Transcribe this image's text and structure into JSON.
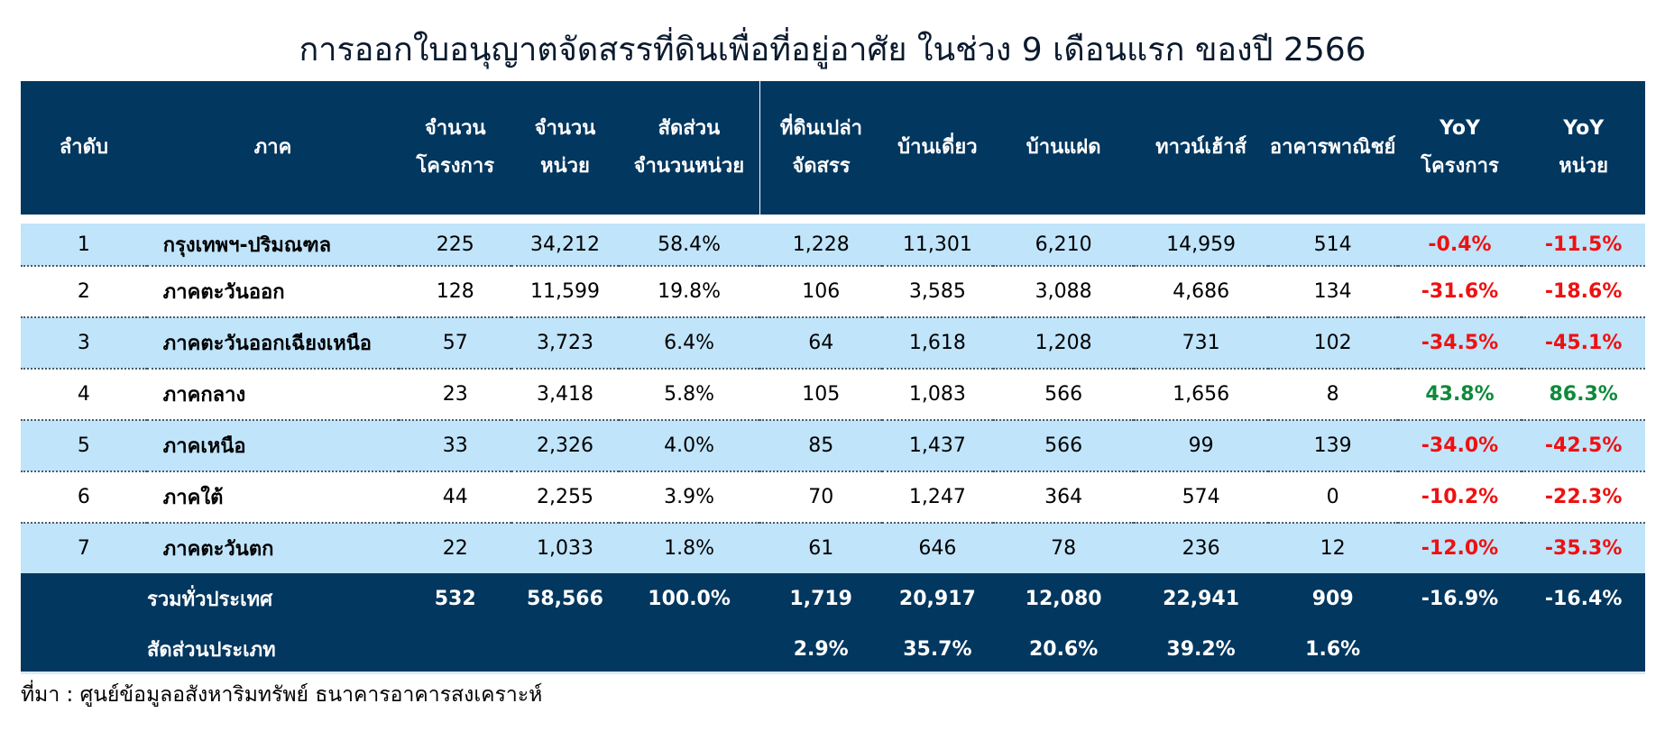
{
  "title": "การออกใบอนุญาตจัดสรรที่ดินเพื่อที่อยู่อาศัย ในช่วง 9 เดือนแรก ของปี 2566",
  "headers": {
    "col0": [
      "ลำดับ"
    ],
    "col1": [
      "ภาค"
    ],
    "col2": [
      "จำนวน",
      "โครงการ"
    ],
    "col3": [
      "จำนวน",
      "หน่วย"
    ],
    "col4": [
      "สัดส่วน",
      "จำนวนหน่วย"
    ],
    "col5": [
      "ที่ดินเปล่า",
      "จัดสรร"
    ],
    "col6": [
      "บ้านเดี่ยว"
    ],
    "col7": [
      "บ้านแฝด"
    ],
    "col8": [
      "ทาวน์เฮ้าส์"
    ],
    "col9": [
      "อาคารพาณิชย์"
    ],
    "col10": [
      "YoY",
      "โครงการ"
    ],
    "col11": [
      "YoY",
      "หน่วย"
    ]
  },
  "rows": [
    {
      "no": "1",
      "region": "กรุงเทพฯ-ปริมณฑล",
      "projects": "225",
      "units": "34,212",
      "share": "58.4%",
      "land": "1,228",
      "detached": "11,301",
      "twin": "6,210",
      "townhouse": "14,959",
      "commercial": "514",
      "yoy_projects": "-0.4%",
      "yoy_units": "-11.5%"
    },
    {
      "no": "2",
      "region": "ภาคตะวันออก",
      "projects": "128",
      "units": "11,599",
      "share": "19.8%",
      "land": "106",
      "detached": "3,585",
      "twin": "3,088",
      "townhouse": "4,686",
      "commercial": "134",
      "yoy_projects": "-31.6%",
      "yoy_units": "-18.6%"
    },
    {
      "no": "3",
      "region": "ภาคตะวันออกเฉียงเหนือ",
      "projects": "57",
      "units": "3,723",
      "share": "6.4%",
      "land": "64",
      "detached": "1,618",
      "twin": "1,208",
      "townhouse": "731",
      "commercial": "102",
      "yoy_projects": "-34.5%",
      "yoy_units": "-45.1%"
    },
    {
      "no": "4",
      "region": "ภาคกลาง",
      "projects": "23",
      "units": "3,418",
      "share": "5.8%",
      "land": "105",
      "detached": "1,083",
      "twin": "566",
      "townhouse": "1,656",
      "commercial": "8",
      "yoy_projects": "43.8%",
      "yoy_units": "86.3%"
    },
    {
      "no": "5",
      "region": "ภาคเหนือ",
      "projects": "33",
      "units": "2,326",
      "share": "4.0%",
      "land": "85",
      "detached": "1,437",
      "twin": "566",
      "townhouse": "99",
      "commercial": "139",
      "yoy_projects": "-34.0%",
      "yoy_units": "-42.5%"
    },
    {
      "no": "6",
      "region": "ภาคใต้",
      "projects": "44",
      "units": "2,255",
      "share": "3.9%",
      "land": "70",
      "detached": "1,247",
      "twin": "364",
      "townhouse": "574",
      "commercial": "0",
      "yoy_projects": "-10.2%",
      "yoy_units": "-22.3%"
    },
    {
      "no": "7",
      "region": "ภาคตะวันตก",
      "projects": "22",
      "units": "1,033",
      "share": "1.8%",
      "land": "61",
      "detached": "646",
      "twin": "78",
      "townhouse": "236",
      "commercial": "12",
      "yoy_projects": "-12.0%",
      "yoy_units": "-35.3%"
    }
  ],
  "total": {
    "label": "รวมทั่วประเทศ",
    "projects": "532",
    "units": "58,566",
    "share": "100.0%",
    "land": "1,719",
    "detached": "20,917",
    "twin": "12,080",
    "townhouse": "22,941",
    "commercial": "909",
    "yoy_projects": "-16.9%",
    "yoy_units": "-16.4%"
  },
  "type_share": {
    "label": "สัดส่วนประเภท",
    "land": "2.9%",
    "detached": "35.7%",
    "twin": "20.6%",
    "townhouse": "39.2%",
    "commercial": "1.6%"
  },
  "source": "ที่มา : ศูนย์ข้อมูลอสังหาริมทรัพย์ ธนาคารอาคารสงเคราะห์",
  "colors": {
    "header_bg": "#02375f",
    "row_light": "#c0e4fa",
    "negative": "#ee1111",
    "positive": "#0f8a3a"
  }
}
